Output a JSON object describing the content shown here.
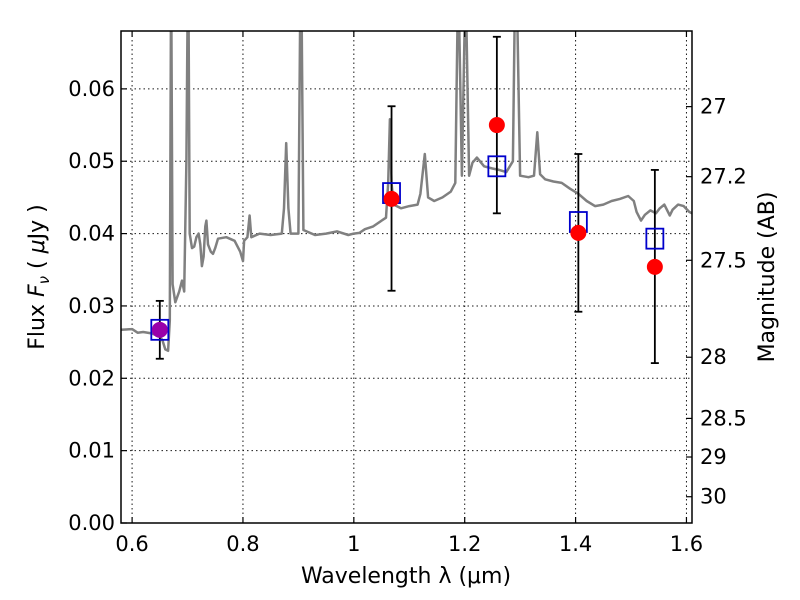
{
  "chart_data": {
    "type": "scatter",
    "xlabel": "Wavelength  λ (μm)",
    "ylabel": "Flux  F_ν  ( μJy )",
    "ylabel_parts": [
      "Flux  ",
      "F",
      "ν",
      "  ( ",
      "μ",
      "Jy )"
    ],
    "y2label": "Magnitude (AB)",
    "xlim": [
      0.58,
      1.61
    ],
    "ylim": [
      0.0,
      0.068
    ],
    "x_ticks": [
      0.6,
      0.8,
      1.0,
      1.2,
      1.4,
      1.6
    ],
    "x_tick_labels": [
      "0.6",
      "0.8",
      "1",
      "1.2",
      "1.4",
      "1.6"
    ],
    "y_ticks": [
      0.0,
      0.01,
      0.02,
      0.03,
      0.04,
      0.05,
      0.06
    ],
    "y_tick_labels": [
      "0.00",
      "0.01",
      "0.02",
      "0.03",
      "0.04",
      "0.05",
      "0.06"
    ],
    "y2_ticks": [
      27,
      27.2,
      27.5,
      28,
      28.5,
      29,
      30
    ],
    "y2_tick_labels": [
      "27",
      "27.2",
      "27.5",
      "28",
      "28.5",
      "29",
      "30"
    ],
    "grid": true,
    "colors": {
      "spectrum": "#808080",
      "model_box": "#0000cc",
      "observed": "#ff0000",
      "errorbar": "#000000",
      "overlap_point": "#9900aa"
    },
    "spectrum": [
      [
        0.58,
        0.0267
      ],
      [
        0.6,
        0.0268
      ],
      [
        0.61,
        0.0263
      ],
      [
        0.62,
        0.0264
      ],
      [
        0.635,
        0.0262
      ],
      [
        0.65,
        0.0258
      ],
      [
        0.655,
        0.0252
      ],
      [
        0.66,
        0.024
      ],
      [
        0.665,
        0.0238
      ],
      [
        0.668,
        0.028
      ],
      [
        0.67,
        0.069
      ],
      [
        0.671,
        0.069
      ],
      [
        0.673,
        0.033
      ],
      [
        0.678,
        0.0305
      ],
      [
        0.685,
        0.032
      ],
      [
        0.69,
        0.0335
      ],
      [
        0.694,
        0.032
      ],
      [
        0.698,
        0.05
      ],
      [
        0.7,
        0.069
      ],
      [
        0.702,
        0.069
      ],
      [
        0.704,
        0.04
      ],
      [
        0.708,
        0.038
      ],
      [
        0.712,
        0.0382
      ],
      [
        0.716,
        0.0395
      ],
      [
        0.72,
        0.04
      ],
      [
        0.723,
        0.0385
      ],
      [
        0.726,
        0.0355
      ],
      [
        0.729,
        0.0368
      ],
      [
        0.732,
        0.041
      ],
      [
        0.734,
        0.0418
      ],
      [
        0.737,
        0.0385
      ],
      [
        0.742,
        0.0375
      ],
      [
        0.746,
        0.0372
      ],
      [
        0.75,
        0.038
      ],
      [
        0.755,
        0.0393
      ],
      [
        0.77,
        0.0395
      ],
      [
        0.785,
        0.039
      ],
      [
        0.795,
        0.0375
      ],
      [
        0.8,
        0.0362
      ],
      [
        0.802,
        0.039
      ],
      [
        0.808,
        0.0395
      ],
      [
        0.812,
        0.0425
      ],
      [
        0.815,
        0.0395
      ],
      [
        0.83,
        0.04
      ],
      [
        0.85,
        0.0398
      ],
      [
        0.87,
        0.04
      ],
      [
        0.874,
        0.0435
      ],
      [
        0.878,
        0.0525
      ],
      [
        0.882,
        0.0435
      ],
      [
        0.886,
        0.04
      ],
      [
        0.9,
        0.04
      ],
      [
        0.903,
        0.069
      ],
      [
        0.906,
        0.069
      ],
      [
        0.909,
        0.0405
      ],
      [
        0.93,
        0.0398
      ],
      [
        0.95,
        0.04
      ],
      [
        0.97,
        0.0403
      ],
      [
        0.99,
        0.0398
      ],
      [
        1.0,
        0.04
      ],
      [
        1.01,
        0.0401
      ],
      [
        1.02,
        0.0406
      ],
      [
        1.035,
        0.041
      ],
      [
        1.05,
        0.0418
      ],
      [
        1.058,
        0.0422
      ],
      [
        1.062,
        0.047
      ],
      [
        1.065,
        0.0558
      ],
      [
        1.068,
        0.047
      ],
      [
        1.072,
        0.044
      ],
      [
        1.085,
        0.0435
      ],
      [
        1.1,
        0.0438
      ],
      [
        1.115,
        0.044
      ],
      [
        1.12,
        0.0455
      ],
      [
        1.128,
        0.051
      ],
      [
        1.134,
        0.045
      ],
      [
        1.145,
        0.0445
      ],
      [
        1.16,
        0.045
      ],
      [
        1.175,
        0.0458
      ],
      [
        1.183,
        0.047
      ],
      [
        1.187,
        0.069
      ],
      [
        1.19,
        0.069
      ],
      [
        1.195,
        0.048
      ],
      [
        1.2,
        0.069
      ],
      [
        1.203,
        0.069
      ],
      [
        1.208,
        0.048
      ],
      [
        1.214,
        0.0498
      ],
      [
        1.222,
        0.0505
      ],
      [
        1.235,
        0.0493
      ],
      [
        1.25,
        0.049
      ],
      [
        1.262,
        0.0488
      ],
      [
        1.275,
        0.0485
      ],
      [
        1.287,
        0.05
      ],
      [
        1.29,
        0.069
      ],
      [
        1.295,
        0.069
      ],
      [
        1.3,
        0.048
      ],
      [
        1.315,
        0.0478
      ],
      [
        1.325,
        0.048
      ],
      [
        1.331,
        0.054
      ],
      [
        1.336,
        0.0482
      ],
      [
        1.345,
        0.0475
      ],
      [
        1.36,
        0.0472
      ],
      [
        1.375,
        0.047
      ],
      [
        1.39,
        0.0462
      ],
      [
        1.405,
        0.0455
      ],
      [
        1.42,
        0.0445
      ],
      [
        1.435,
        0.0438
      ],
      [
        1.45,
        0.044
      ],
      [
        1.465,
        0.0445
      ],
      [
        1.48,
        0.0448
      ],
      [
        1.495,
        0.0452
      ],
      [
        1.505,
        0.0445
      ],
      [
        1.51,
        0.043
      ],
      [
        1.518,
        0.0418
      ],
      [
        1.525,
        0.0426
      ],
      [
        1.535,
        0.0432
      ],
      [
        1.545,
        0.0428
      ],
      [
        1.552,
        0.0435
      ],
      [
        1.56,
        0.044
      ],
      [
        1.57,
        0.0425
      ],
      [
        1.575,
        0.0433
      ],
      [
        1.585,
        0.044
      ],
      [
        1.595,
        0.0438
      ],
      [
        1.605,
        0.043
      ],
      [
        1.61,
        0.0428
      ]
    ],
    "model_boxes": [
      {
        "x": 0.65,
        "y": 0.0267
      },
      {
        "x": 1.068,
        "y": 0.0456
      },
      {
        "x": 1.258,
        "y": 0.0493
      },
      {
        "x": 1.405,
        "y": 0.0416
      },
      {
        "x": 1.543,
        "y": 0.0393
      }
    ],
    "observed": [
      {
        "x": 0.65,
        "y": 0.0267,
        "yerr_low": 0.0227,
        "yerr_high": 0.0307
      },
      {
        "x": 1.068,
        "y": 0.0448,
        "yerr_low": 0.0321,
        "yerr_high": 0.0576
      },
      {
        "x": 1.258,
        "y": 0.055,
        "yerr_low": 0.0428,
        "yerr_high": 0.0672
      },
      {
        "x": 1.405,
        "y": 0.0401,
        "yerr_low": 0.0292,
        "yerr_high": 0.051
      },
      {
        "x": 1.543,
        "y": 0.0354,
        "yerr_low": 0.0221,
        "yerr_high": 0.0488
      }
    ]
  }
}
